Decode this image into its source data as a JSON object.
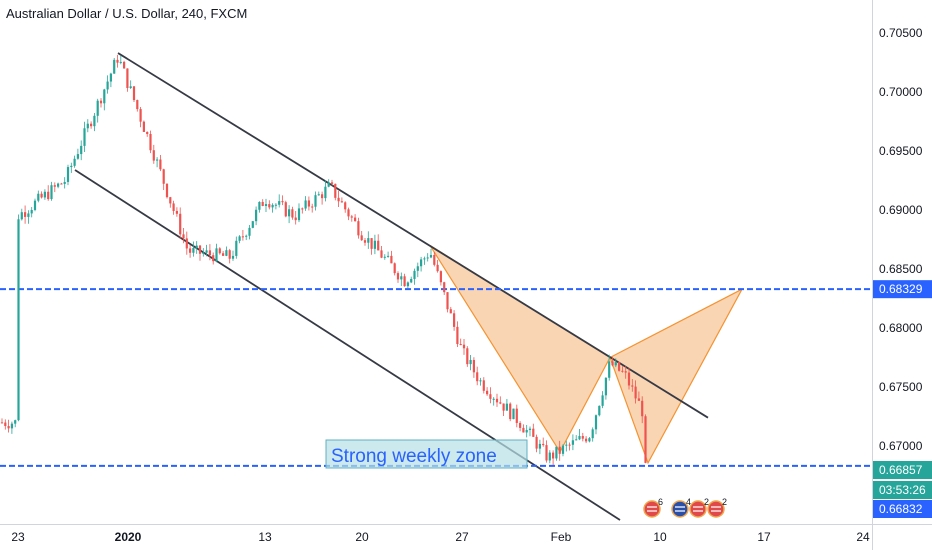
{
  "header": {
    "title": "Australian Dollar / U.S. Dollar, 240, FXCM"
  },
  "annotation_text": "Strong weekly zone",
  "price_badges": {
    "level_high": "0.68329",
    "last_price": "0.66857",
    "countdown": "03:53:26",
    "level_low": "0.66832"
  },
  "event_icons": [
    {
      "icon": "us-flag-icon",
      "count": "6"
    },
    {
      "icon": "au-flag-icon",
      "count": "4"
    },
    {
      "icon": "us-flag-icon",
      "count": "2"
    },
    {
      "icon": "us-flag-icon",
      "count": "2"
    }
  ],
  "colors": {
    "up": "#26a69a",
    "down": "#ef5350",
    "level": "#2962ff",
    "pattern_fill": "#f7c79a",
    "pattern_line": "#f59331",
    "channel": "#363a45",
    "badge_dark": "#131722"
  },
  "chart_data": {
    "type": "candlestick",
    "title": "Australian Dollar / U.S. Dollar, 240, FXCM",
    "symbol": "AUDUSD",
    "timeframe": "240",
    "source": "FXCM",
    "x_ticks": [
      "23",
      "2020",
      "13",
      "20",
      "27",
      "Feb",
      "10",
      "17",
      "24"
    ],
    "y_ticks": [
      0.705,
      0.7,
      0.695,
      0.69,
      0.685,
      0.68,
      0.675,
      0.67
    ],
    "y_tick_labels": [
      "0.70500",
      "0.70000",
      "0.69500",
      "0.69000",
      "0.68500",
      "0.68000",
      "0.67500",
      "0.67000"
    ],
    "ylim": [
      0.6638,
      0.7082
    ],
    "grid": false,
    "series": [
      {
        "date": "Dec 23",
        "close": 0.6895
      },
      {
        "date": "Dec 26",
        "close": 0.6925
      },
      {
        "date": "Dec 31",
        "close": 0.703
      },
      {
        "date": "Jan 6",
        "close": 0.6945
      },
      {
        "date": "Jan 8",
        "close": 0.6865
      },
      {
        "date": "Jan 9",
        "close": 0.686
      },
      {
        "date": "Jan 13",
        "close": 0.691
      },
      {
        "date": "Jan 15",
        "close": 0.6895
      },
      {
        "date": "Jan 17",
        "close": 0.692
      },
      {
        "date": "Jan 20",
        "close": 0.688
      },
      {
        "date": "Jan 23",
        "close": 0.684
      },
      {
        "date": "Jan 24",
        "close": 0.6865
      },
      {
        "date": "Jan 27",
        "close": 0.678
      },
      {
        "date": "Jan 28",
        "close": 0.6755
      },
      {
        "date": "Jan 30",
        "close": 0.672
      },
      {
        "date": "Jan 31",
        "close": 0.669
      },
      {
        "date": "Feb 3",
        "close": 0.671
      },
      {
        "date": "Feb 5",
        "close": 0.677
      },
      {
        "date": "Feb 6",
        "close": 0.676
      },
      {
        "date": "Feb 7",
        "close": 0.672
      },
      {
        "date": "Feb 7 (last)",
        "close": 0.66857
      }
    ],
    "horizontal_levels": [
      0.68329,
      0.66832
    ],
    "last_price": 0.66857,
    "channel": {
      "upper": [
        {
          "date": "Dec 31",
          "value": 0.7033
        },
        {
          "date": "Feb 13",
          "value": 0.6724
        }
      ],
      "lower": [
        {
          "date": "Dec 26",
          "value": 0.6933
        },
        {
          "date": "Feb 10",
          "value": 0.6645
        }
      ]
    },
    "harmonic_pattern": [
      {
        "date": "Jan 24",
        "value": 0.687
      },
      {
        "date": "Feb 1",
        "value": 0.6695
      },
      {
        "date": "Feb 5",
        "value": 0.6775
      },
      {
        "date": "Feb 7",
        "value": 0.66857
      },
      {
        "date": "Feb 14",
        "value": 0.68329
      }
    ]
  }
}
